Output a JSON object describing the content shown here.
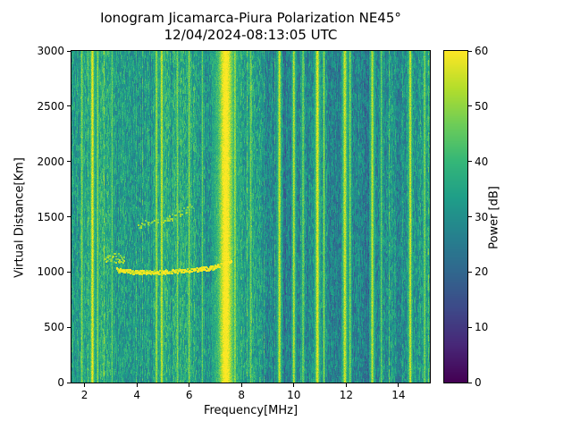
{
  "chart_data": {
    "type": "heatmap",
    "title": "Ionogram Jicamarca-Piura Polarization NE45°",
    "subtitle": "12/04/2024-08:13:05 UTC",
    "xlabel": "Frequency[MHz]",
    "ylabel": "Virtual Distance[Km]",
    "colorbar_label": "Power [dB]",
    "colormap": "viridis",
    "legend": "none",
    "grid": false,
    "xlim": [
      1.5,
      15.2
    ],
    "ylim": [
      0,
      3000
    ],
    "clim": [
      0,
      60
    ],
    "x_ticks": [
      2,
      4,
      6,
      8,
      10,
      12,
      14
    ],
    "y_ticks": [
      0,
      500,
      1000,
      1500,
      2000,
      2500,
      3000
    ],
    "colorbar_ticks": [
      0,
      10,
      20,
      30,
      40,
      50,
      60
    ],
    "background": {
      "mean_db": 33,
      "pixel_noise_db": 7,
      "column_noise_db": 2,
      "horizontal_trend_db": [
        1.5,
        -1.5
      ]
    },
    "band_offsets": [
      {
        "f_start": 4.4,
        "f_end": 6.3,
        "offset_db": 1.5
      },
      {
        "f_start": 8.9,
        "f_end": 9.35,
        "offset_db": -4
      },
      {
        "f_start": 9.6,
        "f_end": 10.3,
        "offset_db": -5
      },
      {
        "f_start": 11.25,
        "f_end": 11.8,
        "offset_db": -4
      },
      {
        "f_start": 12.2,
        "f_end": 12.9,
        "offset_db": -6
      },
      {
        "f_start": 13.9,
        "f_end": 14.3,
        "offset_db": -3
      }
    ],
    "rfi_stripes": [
      {
        "f": 1.9,
        "width": 0.05,
        "peak_db": 50
      },
      {
        "f": 2.3,
        "width": 0.09,
        "peak_db": 58
      },
      {
        "f": 2.5,
        "width": 0.05,
        "peak_db": 50
      },
      {
        "f": 3.05,
        "width": 0.04,
        "peak_db": 46
      },
      {
        "f": 4.75,
        "width": 0.06,
        "peak_db": 52
      },
      {
        "f": 4.95,
        "width": 0.07,
        "peak_db": 55
      },
      {
        "f": 5.55,
        "width": 0.05,
        "peak_db": 48
      },
      {
        "f": 6.0,
        "width": 0.05,
        "peak_db": 50
      },
      {
        "f": 6.5,
        "width": 0.04,
        "peak_db": 46
      },
      {
        "f": 7.4,
        "width": 0.38,
        "peak_db": 62
      },
      {
        "f": 7.75,
        "width": 0.06,
        "peak_db": 52
      },
      {
        "f": 8.35,
        "width": 0.05,
        "peak_db": 47
      },
      {
        "f": 9.45,
        "width": 0.08,
        "peak_db": 55
      },
      {
        "f": 10.0,
        "width": 0.07,
        "peak_db": 53
      },
      {
        "f": 10.35,
        "width": 0.05,
        "peak_db": 48
      },
      {
        "f": 10.9,
        "width": 0.1,
        "peak_db": 57
      },
      {
        "f": 11.15,
        "width": 0.05,
        "peak_db": 50
      },
      {
        "f": 11.95,
        "width": 0.1,
        "peak_db": 55
      },
      {
        "f": 12.15,
        "width": 0.05,
        "peak_db": 49
      },
      {
        "f": 13.0,
        "width": 0.08,
        "peak_db": 54
      },
      {
        "f": 13.35,
        "width": 0.04,
        "peak_db": 47
      },
      {
        "f": 14.45,
        "width": 0.08,
        "peak_db": 55
      },
      {
        "f": 15.0,
        "width": 0.05,
        "peak_db": 49
      }
    ],
    "echo_traces": [
      {
        "name": "f-layer-echo",
        "power_db": 56,
        "spread_km": 18,
        "density": 0.85,
        "points": [
          [
            3.2,
            1025
          ],
          [
            4.0,
            1000
          ],
          [
            5.0,
            1005
          ],
          [
            6.0,
            1020
          ],
          [
            6.8,
            1040
          ],
          [
            7.2,
            1070
          ],
          [
            7.6,
            1100
          ]
        ]
      },
      {
        "name": "spread-patch",
        "power_db": 50,
        "spread_km": 45,
        "density": 0.5,
        "points": [
          [
            2.75,
            1130
          ],
          [
            3.1,
            1140
          ],
          [
            3.5,
            1120
          ]
        ]
      },
      {
        "name": "second-hop-echo",
        "power_db": 48,
        "spread_km": 30,
        "density": 0.35,
        "points": [
          [
            4.0,
            1430
          ],
          [
            4.8,
            1460
          ],
          [
            5.5,
            1520
          ],
          [
            6.1,
            1600
          ]
        ]
      }
    ]
  }
}
